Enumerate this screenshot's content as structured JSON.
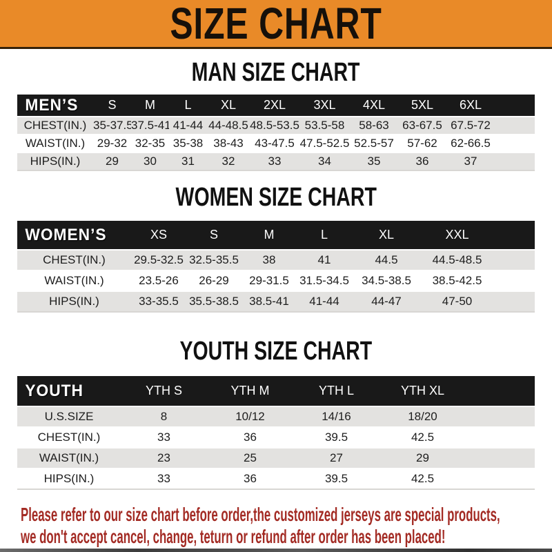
{
  "banner": {
    "title": "SIZE CHART"
  },
  "sections": [
    {
      "heading": "MAN SIZE CHART",
      "table": {
        "header_label": "MEN’S",
        "columns": [
          "S",
          "M",
          "L",
          "XL",
          "2XL",
          "3XL",
          "4XL",
          "5XL",
          "6XL"
        ],
        "rows": [
          {
            "label": "CHEST(IN.)",
            "values": [
              "35-37.5",
              "37.5-41",
              "41-44",
              "44-48.5",
              "48.5-53.5",
              "53.5-58",
              "58-63",
              "63-67.5",
              "67.5-72"
            ]
          },
          {
            "label": "WAIST(IN.)",
            "values": [
              "29-32",
              "32-35",
              "35-38",
              "38-43",
              "43-47.5",
              "47.5-52.5",
              "52.5-57",
              "57-62",
              "62-66.5"
            ]
          },
          {
            "label": "HIPS(IN.)",
            "values": [
              "29",
              "30",
              "31",
              "32",
              "33",
              "34",
              "35",
              "36",
              "37"
            ]
          }
        ]
      }
    },
    {
      "heading": "WOMEN SIZE CHART",
      "table": {
        "header_label": "WOMEN’S",
        "columns": [
          "XS",
          "S",
          "M",
          "L",
          "XL",
          "XXL"
        ],
        "rows": [
          {
            "label": "CHEST(IN.)",
            "values": [
              "29.5-32.5",
              "32.5-35.5",
              "38",
              "41",
              "44.5",
              "44.5-48.5"
            ]
          },
          {
            "label": "WAIST(IN.)",
            "values": [
              "23.5-26",
              "26-29",
              "29-31.5",
              "31.5-34.5",
              "34.5-38.5",
              "38.5-42.5"
            ]
          },
          {
            "label": "HIPS(IN.)",
            "values": [
              "33-35.5",
              "35.5-38.5",
              "38.5-41",
              "41-44",
              "44-47",
              "47-50"
            ]
          }
        ]
      }
    },
    {
      "heading": "YOUTH SIZE CHART",
      "table": {
        "header_label": "YOUTH",
        "columns": [
          "YTH S",
          "YTH M",
          "YTH L",
          "YTH XL"
        ],
        "rows": [
          {
            "label": "U.S.SIZE",
            "values": [
              "8",
              "10/12",
              "14/16",
              "18/20"
            ]
          },
          {
            "label": "CHEST(IN.)",
            "values": [
              "33",
              "36",
              "39.5",
              "42.5"
            ]
          },
          {
            "label": "WAIST(IN.)",
            "values": [
              "23",
              "25",
              "27",
              "29"
            ]
          },
          {
            "label": "HIPS(IN.)",
            "values": [
              "33",
              "36",
              "39.5",
              "42.5"
            ]
          }
        ]
      }
    }
  ],
  "footer": {
    "line1": "Please refer to our size chart before order,the customized jerseys are special products,",
    "line2": "we don't accept cancel, change, teturn or refund after order has been placed!"
  },
  "colors": {
    "banner_orange": "#E98A28",
    "header_bar_black": "#191919",
    "row_gray": "#E3E2E0",
    "footer_red": "#A32B24"
  }
}
